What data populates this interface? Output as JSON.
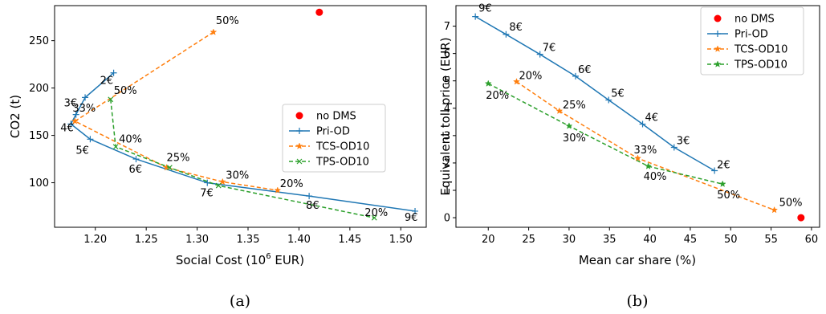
{
  "figure": {
    "captions": [
      "(a)",
      "(b)"
    ]
  },
  "chart_data": [
    {
      "type": "line",
      "title": "",
      "xlabel": "Social Cost (10",
      "xlabel_sup": "6",
      "xlabel_tail": " EUR)",
      "ylabel": "CO2 (t)",
      "xlim": [
        1.16,
        1.525
      ],
      "ylim": [
        53,
        287
      ],
      "xticks": [
        1.2,
        1.25,
        1.3,
        1.35,
        1.4,
        1.45,
        1.5
      ],
      "xtick_labels": [
        "1.20",
        "1.25",
        "1.30",
        "1.35",
        "1.40",
        "1.45",
        "1.50"
      ],
      "yticks": [
        100,
        150,
        200,
        250
      ],
      "ytick_labels": [
        "100",
        "150",
        "200",
        "250"
      ],
      "legend_position": "center-right",
      "series": [
        {
          "name": "no DMS",
          "style": "point",
          "color": "#ff0000",
          "points": [
            [
              1.42,
              280
            ]
          ],
          "labels": []
        },
        {
          "name": "Pri-OD",
          "style": "solid",
          "marker": "plus",
          "color": "#1f77b4",
          "points": [
            [
              1.218,
              216
            ],
            [
              1.19,
              190
            ],
            [
              1.181,
              172
            ],
            [
              1.176,
              162
            ],
            [
              1.195,
              146
            ],
            [
              1.24,
              125
            ],
            [
              1.31,
              100
            ],
            [
              1.41,
              86
            ],
            [
              1.514,
              70
            ]
          ],
          "labels": [
            "2€",
            "",
            "3€",
            "4€",
            "5€",
            "6€",
            "7€",
            "8€",
            "9€"
          ]
        },
        {
          "name": "TCS-OD10",
          "style": "dashed",
          "marker": "star",
          "color": "#ff7f0e",
          "points": [
            [
              1.316,
              259
            ],
            [
              1.18,
              165
            ],
            [
              1.27,
              116
            ],
            [
              1.325,
              101
            ],
            [
              1.379,
              92
            ]
          ],
          "labels": [
            "50%",
            "33%",
            "25%",
            "30%",
            "20%"
          ]
        },
        {
          "name": "TPS-OD10",
          "style": "dashed",
          "marker": "x",
          "color": "#2ca02c",
          "points": [
            [
              1.215,
              188
            ],
            [
              1.22,
              138
            ],
            [
              1.273,
              116
            ],
            [
              1.321,
              97
            ],
            [
              1.474,
              63
            ]
          ],
          "labels": [
            "50%",
            "40%",
            "",
            "",
            "20%"
          ]
        }
      ]
    },
    {
      "type": "line",
      "title": "",
      "xlabel": "Mean car share (%)",
      "ylabel": "Equivalent toll price (EUR)",
      "xlim": [
        16,
        61
      ],
      "ylim": [
        -0.35,
        7.75
      ],
      "xticks": [
        20,
        25,
        30,
        35,
        40,
        45,
        50,
        55,
        60
      ],
      "xtick_labels": [
        "20",
        "25",
        "30",
        "35",
        "40",
        "45",
        "50",
        "55",
        "60"
      ],
      "yticks": [
        0,
        1,
        2,
        3,
        4,
        5,
        6,
        7
      ],
      "ytick_labels": [
        "0",
        "1",
        "2",
        "3",
        "4",
        "5",
        "6",
        "7"
      ],
      "legend_position": "top-right",
      "series": [
        {
          "name": "no DMS",
          "style": "point",
          "color": "#ff0000",
          "points": [
            [
              58.7,
              0
            ]
          ],
          "labels": []
        },
        {
          "name": "Pri-OD",
          "style": "solid",
          "marker": "plus",
          "color": "#1f77b4",
          "points": [
            [
              18.4,
              7.35
            ],
            [
              22.2,
              6.7
            ],
            [
              26.4,
              5.97
            ],
            [
              30.8,
              5.17
            ],
            [
              34.9,
              4.3
            ],
            [
              39.1,
              3.42
            ],
            [
              43.0,
              2.57
            ],
            [
              48.0,
              1.72
            ]
          ],
          "labels": [
            "9€",
            "8€",
            "7€",
            "6€",
            "5€",
            "4€",
            "3€",
            "2€"
          ]
        },
        {
          "name": "TCS-OD10",
          "style": "dashed",
          "marker": "star",
          "color": "#ff7f0e",
          "points": [
            [
              23.5,
              4.97
            ],
            [
              28.8,
              3.9
            ],
            [
              38.5,
              2.17
            ],
            [
              55.4,
              0.28
            ]
          ],
          "labels": [
            "20%",
            "25%",
            "33%",
            "50%"
          ]
        },
        {
          "name": "TPS-OD10",
          "style": "dashed",
          "marker": "star",
          "color": "#2ca02c",
          "points": [
            [
              20.0,
              4.9
            ],
            [
              30.0,
              3.35
            ],
            [
              39.8,
              1.88
            ],
            [
              49.0,
              1.23
            ]
          ],
          "labels": [
            "20%",
            "30%",
            "40%",
            "50%"
          ]
        }
      ]
    }
  ]
}
